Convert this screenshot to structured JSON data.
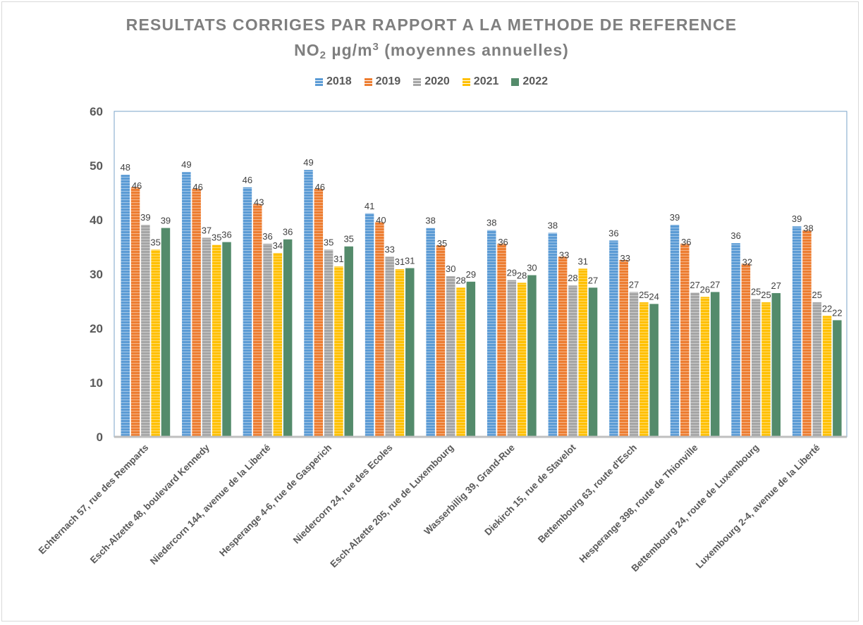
{
  "chart_data": {
    "type": "bar",
    "title": "RESULTATS CORRIGES PAR RAPPORT A LA METHODE DE REFERENCE",
    "subtitle": {
      "prefix": "NO",
      "sub": "2",
      "middle": " µg/m",
      "sup": "3",
      "suffix": " (moyennes annuelles)"
    },
    "xlabel": "",
    "ylabel": "",
    "ylim": [
      0,
      60
    ],
    "yticks": [
      0,
      10,
      20,
      30,
      40,
      50,
      60
    ],
    "grid": false,
    "legend_position": "top-center",
    "categories": [
      "Echternach 57, rue des Remparts",
      "Esch-Alzette 48, boulevard Kennedy",
      "Niedercorn 144, avenue de la Liberté",
      "Hesperange 4-6, rue de Gasperich",
      "Niedercorn 24, rue des Ecoles",
      "Esch-Alzette 205, rue de Luxembourg",
      "Wasserbillig 39, Grand-Rue",
      "Diekirch 15, rue de Stavelot",
      "Bettembourg 63, route d'Esch",
      "Hesperange 398, route de Thionville",
      "Bettembourg 24, route de Luxembourg",
      "Luxembourg 2-4, avenue de la Liberté"
    ],
    "series": [
      {
        "name": "2018",
        "color": "#5b9bd5",
        "values": [
          48,
          49,
          46,
          49,
          41,
          38,
          38,
          38,
          36,
          39,
          36,
          39
        ]
      },
      {
        "name": "2019",
        "color": "#ed7d31",
        "values": [
          46,
          46,
          43,
          46,
          40,
          35,
          36,
          33,
          33,
          36,
          32,
          38
        ]
      },
      {
        "name": "2020",
        "color": "#a5a5a5",
        "values": [
          39,
          37,
          36,
          35,
          33,
          30,
          29,
          28,
          27,
          27,
          25,
          25
        ]
      },
      {
        "name": "2021",
        "color": "#ffc000",
        "values": [
          35,
          35,
          34,
          31,
          31,
          28,
          28,
          31,
          25,
          26,
          25,
          22
        ]
      },
      {
        "name": "2022",
        "color": "#548b6b",
        "values": [
          39,
          36,
          36,
          35,
          31,
          29,
          30,
          27,
          24,
          27,
          27,
          22
        ]
      }
    ],
    "bar_heights_precise": [
      [
        48.3,
        48.8,
        46.0,
        49.2,
        41.2,
        38.5,
        38.1,
        37.6,
        36.2,
        39.1,
        35.7,
        38.8
      ],
      [
        46.0,
        45.7,
        42.9,
        45.7,
        39.6,
        35.3,
        35.6,
        33.2,
        32.6,
        35.6,
        31.9,
        38.1
      ],
      [
        39.1,
        36.7,
        35.6,
        34.5,
        33.2,
        29.6,
        28.9,
        27.9,
        26.7,
        26.6,
        25.4,
        24.8
      ],
      [
        34.5,
        35.4,
        33.9,
        31.4,
        30.9,
        27.5,
        28.4,
        31.0,
        24.8,
        25.8,
        24.8,
        22.3
      ],
      [
        38.5,
        35.9,
        36.4,
        35.1,
        31.1,
        28.6,
        29.8,
        27.5,
        24.5,
        26.7,
        26.5,
        21.5
      ]
    ]
  }
}
